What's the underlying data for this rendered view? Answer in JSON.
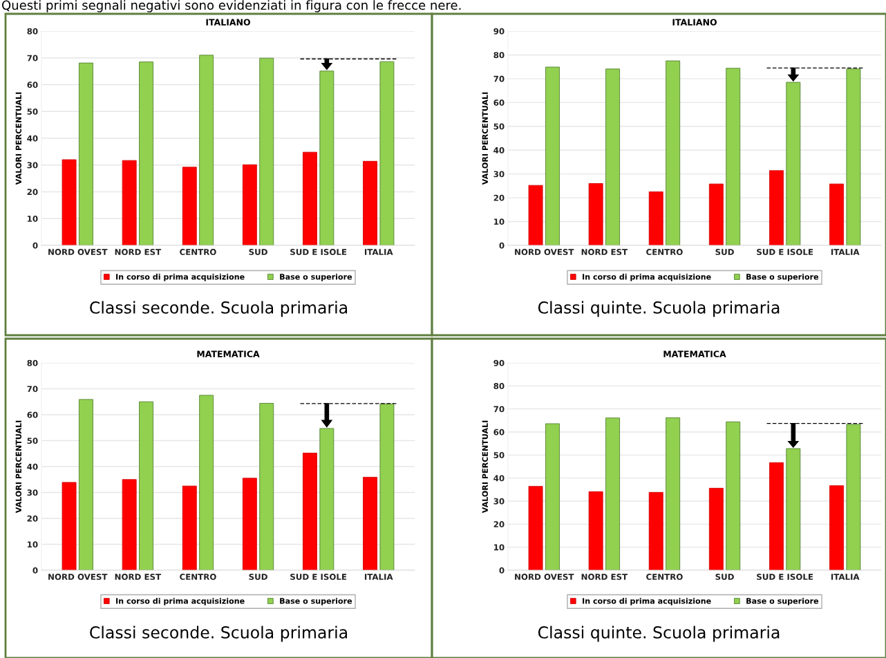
{
  "chart_data": [
    {
      "type": "bar",
      "title": "ITALIANO",
      "ylabel": "VALORI PERCENTUALI",
      "categories": [
        "NORD OVEST",
        "NORD EST",
        "CENTRO",
        "SUD",
        "SUD E ISOLE",
        "ITALIA"
      ],
      "series": [
        {
          "name": "In corso di prima acquisizione",
          "color": "#ff0000",
          "values": [
            32.0,
            31.7,
            29.2,
            30.1,
            34.8,
            31.4
          ]
        },
        {
          "name": "Base o superiore",
          "color": "#92d050",
          "values": [
            68.1,
            68.5,
            71.0,
            69.9,
            65.1,
            68.6
          ]
        }
      ],
      "ylim": [
        0,
        80
      ],
      "yticks": [
        0,
        10,
        20,
        30,
        40,
        50,
        60,
        70,
        80
      ],
      "grid": "y",
      "legend": "bottom",
      "ref_lines": [
        {
          "axis": "y",
          "value": 69.6,
          "color": "#000000",
          "line_style": "dashed"
        }
      ],
      "annotations": [
        "Questi primi segnali negativi sono evidenziati in figura con le frecce nere.",
        "Classi seconde. Scuola primaria"
      ]
    },
    {
      "type": "bar",
      "title": "ITALIANO",
      "ylabel": "VALORI PERCENTUALI",
      "categories": [
        "NORD OVEST",
        "NORD EST",
        "CENTRO",
        "SUD",
        "SUD E ISOLE",
        "ITALIA"
      ],
      "series": [
        {
          "name": "In corso di prima acquisizione",
          "color": "#ff0000",
          "values": [
            25.2,
            26.0,
            22.5,
            25.8,
            31.4,
            25.8
          ]
        },
        {
          "name": "Base o superiore",
          "color": "#92d050",
          "values": [
            74.9,
            74.1,
            77.5,
            74.4,
            68.5,
            74.1
          ]
        }
      ],
      "ylim": [
        0,
        90
      ],
      "yticks": [
        0,
        10,
        20,
        30,
        40,
        50,
        60,
        70,
        80,
        90
      ],
      "grid": "y",
      "legend": "bottom",
      "ref_lines": [
        {
          "axis": "y",
          "value": 74.5,
          "color": "#000000",
          "line_style": "dashed"
        }
      ],
      "annotations": [
        "Classi quinte. Scuola primaria"
      ]
    },
    {
      "type": "bar",
      "title": "MATEMATICA",
      "ylabel": "VALORI PERCENTUALI",
      "categories": [
        "NORD OVEST",
        "NORD EST",
        "CENTRO",
        "SUD",
        "SUD E ISOLE",
        "ITALIA"
      ],
      "series": [
        {
          "name": "In corso di prima acquisizione",
          "color": "#ff0000",
          "values": [
            33.9,
            35.0,
            32.5,
            35.5,
            45.2,
            35.9
          ]
        },
        {
          "name": "Base o superiore",
          "color": "#92d050",
          "values": [
            65.9,
            65.0,
            67.5,
            64.4,
            54.7,
            64.2
          ]
        }
      ],
      "ylim": [
        0,
        80
      ],
      "yticks": [
        0,
        10,
        20,
        30,
        40,
        50,
        60,
        70,
        80
      ],
      "grid": "y",
      "legend": "bottom",
      "ref_lines": [
        {
          "axis": "y",
          "value": 64.3,
          "color": "#000000",
          "line_style": "dashed"
        }
      ],
      "annotations": [
        "Classi seconde. Scuola primaria"
      ]
    },
    {
      "type": "bar",
      "title": "MATEMATICA",
      "ylabel": "VALORI PERCENTUALI",
      "categories": [
        "NORD OVEST",
        "NORD EST",
        "CENTRO",
        "SUD",
        "SUD E ISOLE",
        "ITALIA"
      ],
      "series": [
        {
          "name": "In corso di prima acquisizione",
          "color": "#ff0000",
          "values": [
            36.4,
            34.1,
            33.8,
            35.6,
            46.7,
            36.7
          ]
        },
        {
          "name": "Base o superiore",
          "color": "#92d050",
          "values": [
            63.6,
            66.1,
            66.2,
            64.4,
            52.8,
            63.3
          ]
        }
      ],
      "ylim": [
        0,
        90
      ],
      "yticks": [
        0,
        10,
        20,
        30,
        40,
        50,
        60,
        70,
        80,
        90
      ],
      "grid": "y",
      "legend": "bottom",
      "ref_lines": [
        {
          "axis": "y",
          "value": 63.7,
          "color": "#000000",
          "line_style": "dashed"
        }
      ],
      "annotations": [
        "Classi quinte. Scuola primaria"
      ]
    }
  ]
}
